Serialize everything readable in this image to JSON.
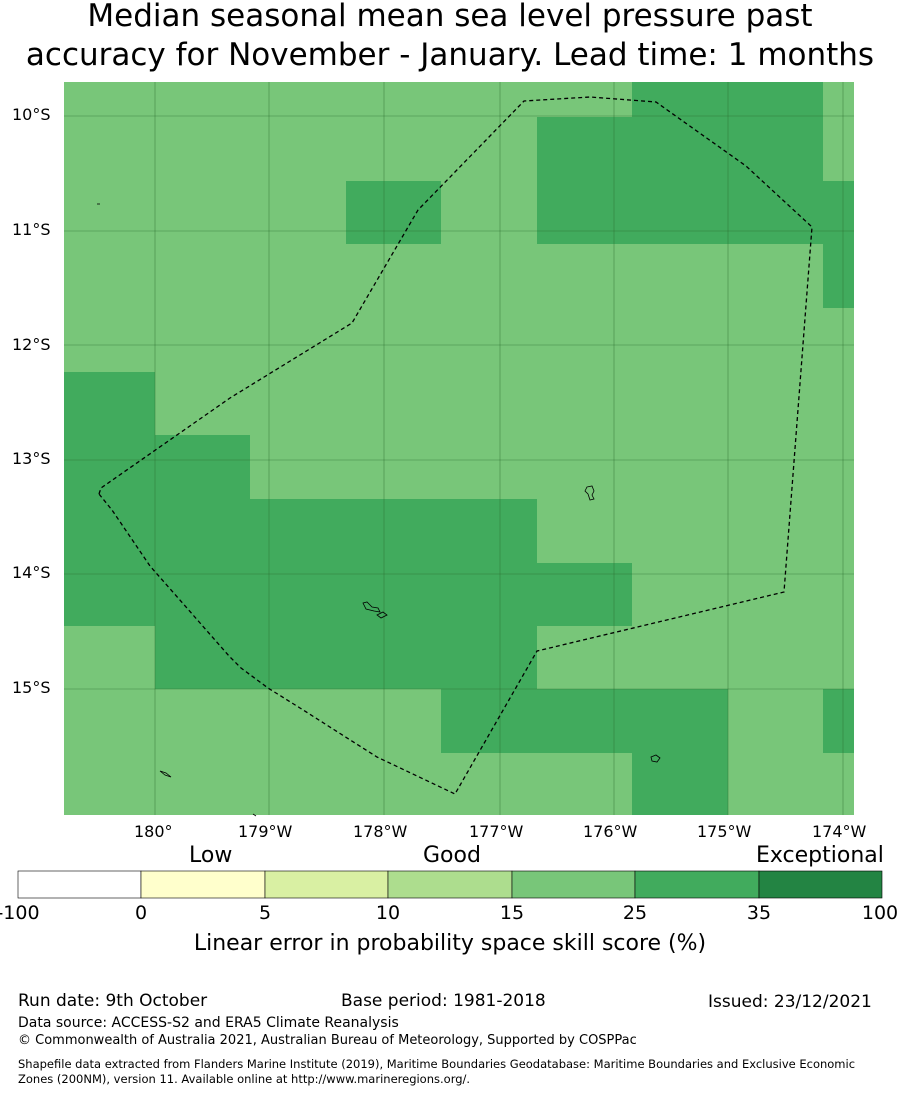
{
  "title": {
    "line1": "Median seasonal mean sea level pressure past",
    "line2": "accuracy for November - January. Lead time: 1 months"
  },
  "map": {
    "lat_labels": [
      "10°S",
      "11°S",
      "12°S",
      "13°S",
      "14°S",
      "15°S"
    ],
    "lon_labels": [
      "180°",
      "179°W",
      "178°W",
      "177°W",
      "176°W",
      "175°W",
      "174°W"
    ],
    "colors": {
      "band_15_25": "#78c679",
      "band_25_35": "#41ab5d",
      "gridline": "#2b6b2f",
      "boundary": "#000000"
    }
  },
  "colorbar": {
    "categories": [
      "Low",
      "Good",
      "Exceptional"
    ],
    "ticks": [
      "-100",
      "0",
      "5",
      "10",
      "15",
      "25",
      "35",
      "100"
    ],
    "colors": [
      "#ffffff",
      "#ffffcc",
      "#d9f0a3",
      "#addd8e",
      "#78c679",
      "#41ab5d",
      "#238443"
    ],
    "title": "Linear error in probability space skill score (%)"
  },
  "footer": {
    "run_date": "Run date: 9th October",
    "base_period": "Base period: 1981-2018",
    "issued": "Issued: 23/12/2021",
    "data_source": "Data source: ACCESS-S2 and ERA5 Climate Reanalysis",
    "copyright": "© Commonwealth of Australia 2021, Australian Bureau of Meteorology, Supported by COSPPac",
    "shapefile_line1": "Shapefile data extracted from Flanders Marine Institute (2019), Maritime Boundaries Geodatabase: Maritime Boundaries and Exclusive Economic",
    "shapefile_line2": "Zones (200NM), version 11. Available online at http://www.marineregions.org/."
  }
}
